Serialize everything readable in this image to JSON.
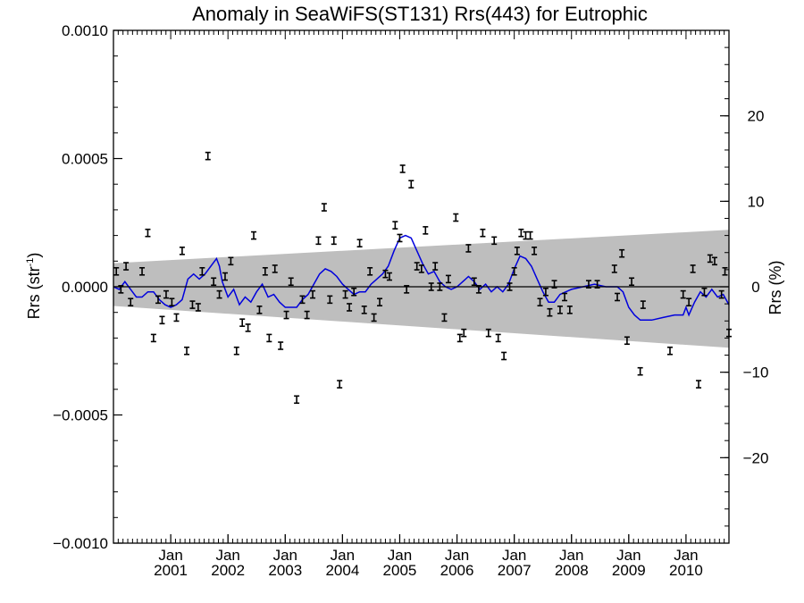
{
  "chart_data": {
    "type": "scatter",
    "title": "Anomaly in SeaWiFS(ST131) Rrs(443) for Eutrophic",
    "ylabel_left": "Rrs (str",
    "ylabel_left_sup": "-1",
    "ylabel_left_close": ")",
    "ylabel_right": "Rrs (%)",
    "ylim_left": [
      -0.001,
      0.001
    ],
    "ylim_right": [
      -30,
      30
    ],
    "xlim": [
      2000.0,
      2010.75
    ],
    "yticks_left": [
      {
        "v": 0.001,
        "label": "0.0010"
      },
      {
        "v": 0.0005,
        "label": "0.0005"
      },
      {
        "v": 0.0,
        "label": "0.0000"
      },
      {
        "v": -0.0005,
        "label": "−0.0005"
      },
      {
        "v": -0.001,
        "label": "−0.0010"
      }
    ],
    "yticks_right": [
      {
        "v": 20,
        "label": "20"
      },
      {
        "v": 10,
        "label": "10"
      },
      {
        "v": 0,
        "label": "0"
      },
      {
        "v": -10,
        "label": "−10"
      },
      {
        "v": -20,
        "label": "−20"
      }
    ],
    "xticks": [
      {
        "v": 2001.0,
        "month": "Jan",
        "year": "2001"
      },
      {
        "v": 2002.0,
        "month": "Jan",
        "year": "2002"
      },
      {
        "v": 2003.0,
        "month": "Jan",
        "year": "2003"
      },
      {
        "v": 2004.0,
        "month": "Jan",
        "year": "2004"
      },
      {
        "v": 2005.0,
        "month": "Jan",
        "year": "2005"
      },
      {
        "v": 2006.0,
        "month": "Jan",
        "year": "2006"
      },
      {
        "v": 2007.0,
        "month": "Jan",
        "year": "2007"
      },
      {
        "v": 2008.0,
        "month": "Jan",
        "year": "2008"
      },
      {
        "v": 2009.0,
        "month": "Jan",
        "year": "2009"
      },
      {
        "v": 2010.0,
        "month": "Jan",
        "year": "2010"
      }
    ],
    "band": {
      "color": "#bebebe",
      "x": [
        2000.0,
        2010.75
      ],
      "upper": [
        9.2e-05,
        0.000222
      ],
      "lower": [
        -7.5e-05,
        -0.000238
      ]
    },
    "zero_line": 0.0,
    "points_color": "#000000",
    "line_color": "#0000dd",
    "points": [
      [
        2000.05,
        6e-05
      ],
      [
        2000.13,
        -1e-05
      ],
      [
        2000.22,
        8e-05
      ],
      [
        2000.3,
        -6e-05
      ],
      [
        2000.5,
        6e-05
      ],
      [
        2000.6,
        0.00021
      ],
      [
        2000.7,
        -0.0002
      ],
      [
        2000.78,
        -5e-05
      ],
      [
        2000.85,
        -0.00013
      ],
      [
        2000.92,
        -3e-05
      ],
      [
        2001.02,
        -6e-05
      ],
      [
        2001.1,
        -0.00012
      ],
      [
        2001.2,
        0.00014
      ],
      [
        2001.28,
        -0.00025
      ],
      [
        2001.38,
        -7e-05
      ],
      [
        2001.48,
        -8e-05
      ],
      [
        2001.55,
        6e-05
      ],
      [
        2001.65,
        0.00051
      ],
      [
        2001.75,
        2e-05
      ],
      [
        2001.85,
        -3e-05
      ],
      [
        2001.95,
        4e-05
      ],
      [
        2002.05,
        0.0001
      ],
      [
        2002.15,
        -0.00025
      ],
      [
        2002.25,
        -0.00014
      ],
      [
        2002.35,
        -0.00016
      ],
      [
        2002.45,
        0.0002
      ],
      [
        2002.55,
        -9e-05
      ],
      [
        2002.65,
        6e-05
      ],
      [
        2002.72,
        -0.0002
      ],
      [
        2002.82,
        7e-05
      ],
      [
        2002.92,
        -0.00023
      ],
      [
        2003.02,
        -0.00011
      ],
      [
        2003.1,
        2e-05
      ],
      [
        2003.2,
        -0.00044
      ],
      [
        2003.3,
        -5e-05
      ],
      [
        2003.38,
        -0.00011
      ],
      [
        2003.48,
        -3e-05
      ],
      [
        2003.58,
        0.00018
      ],
      [
        2003.68,
        0.00031
      ],
      [
        2003.78,
        -5e-05
      ],
      [
        2003.85,
        0.00018
      ],
      [
        2003.95,
        -0.00038
      ],
      [
        2004.05,
        -3e-05
      ],
      [
        2004.12,
        -8e-05
      ],
      [
        2004.2,
        -2e-05
      ],
      [
        2004.3,
        0.00017
      ],
      [
        2004.38,
        -9e-05
      ],
      [
        2004.48,
        6e-05
      ],
      [
        2004.55,
        -0.00012
      ],
      [
        2004.65,
        -6e-05
      ],
      [
        2004.75,
        5e-05
      ],
      [
        2004.82,
        4e-05
      ],
      [
        2004.92,
        0.00024
      ],
      [
        2005.0,
        0.00019
      ],
      [
        2005.05,
        0.00046
      ],
      [
        2005.12,
        -1e-05
      ],
      [
        2005.2,
        0.0004
      ],
      [
        2005.3,
        8e-05
      ],
      [
        2005.38,
        7e-05
      ],
      [
        2005.45,
        0.00022
      ],
      [
        2005.55,
        0.0
      ],
      [
        2005.62,
        8e-05
      ],
      [
        2005.7,
        0.0
      ],
      [
        2005.78,
        -0.00012
      ],
      [
        2005.85,
        3e-05
      ],
      [
        2005.98,
        0.00027
      ],
      [
        2006.05,
        -0.0002
      ],
      [
        2006.12,
        -0.00018
      ],
      [
        2006.2,
        0.00015
      ],
      [
        2006.3,
        2e-05
      ],
      [
        2006.38,
        -1e-05
      ],
      [
        2006.45,
        0.00021
      ],
      [
        2006.55,
        -0.00018
      ],
      [
        2006.65,
        0.00018
      ],
      [
        2006.72,
        -0.0002
      ],
      [
        2006.82,
        -0.00027
      ],
      [
        2006.92,
        0.0
      ],
      [
        2007.0,
        6e-05
      ],
      [
        2007.05,
        0.00014
      ],
      [
        2007.12,
        0.00021
      ],
      [
        2007.2,
        0.0002
      ],
      [
        2007.28,
        0.0002
      ],
      [
        2007.35,
        0.00014
      ],
      [
        2007.45,
        -6e-05
      ],
      [
        2007.55,
        -2e-05
      ],
      [
        2007.62,
        -0.0001
      ],
      [
        2007.7,
        1e-05
      ],
      [
        2007.8,
        -9e-05
      ],
      [
        2007.88,
        -4e-05
      ],
      [
        2007.97,
        -9e-05
      ],
      [
        2008.3,
        1e-05
      ],
      [
        2008.45,
        1e-05
      ],
      [
        2008.75,
        7e-05
      ],
      [
        2008.8,
        -4e-05
      ],
      [
        2008.88,
        0.00013
      ],
      [
        2008.97,
        -0.00021
      ],
      [
        2009.05,
        2e-05
      ],
      [
        2009.2,
        -0.00033
      ],
      [
        2009.25,
        -7e-05
      ],
      [
        2009.72,
        -0.00025
      ],
      [
        2009.95,
        -3e-05
      ],
      [
        2010.05,
        -6e-05
      ],
      [
        2010.12,
        7e-05
      ],
      [
        2010.22,
        -0.00038
      ],
      [
        2010.32,
        -2e-05
      ],
      [
        2010.42,
        0.00011
      ],
      [
        2010.5,
        0.0001
      ],
      [
        2010.62,
        -3e-05
      ],
      [
        2010.68,
        6e-05
      ],
      [
        2010.75,
        -0.00018
      ]
    ],
    "smooth_line": [
      [
        2000.0,
        0.0
      ],
      [
        2000.1,
        -1e-05
      ],
      [
        2000.2,
        2e-05
      ],
      [
        2000.3,
        -1e-05
      ],
      [
        2000.4,
        -4e-05
      ],
      [
        2000.5,
        -4e-05
      ],
      [
        2000.6,
        -2e-05
      ],
      [
        2000.7,
        -2e-05
      ],
      [
        2000.8,
        -5e-05
      ],
      [
        2000.9,
        -7e-05
      ],
      [
        2001.0,
        -8e-05
      ],
      [
        2001.1,
        -7e-05
      ],
      [
        2001.2,
        -5e-05
      ],
      [
        2001.3,
        3e-05
      ],
      [
        2001.4,
        5e-05
      ],
      [
        2001.5,
        3e-05
      ],
      [
        2001.6,
        5e-05
      ],
      [
        2001.7,
        8e-05
      ],
      [
        2001.8,
        0.00011
      ],
      [
        2001.85,
        8e-05
      ],
      [
        2001.9,
        2e-05
      ],
      [
        2002.0,
        -4e-05
      ],
      [
        2002.1,
        -1e-05
      ],
      [
        2002.2,
        -7e-05
      ],
      [
        2002.3,
        -4e-05
      ],
      [
        2002.4,
        -6e-05
      ],
      [
        2002.5,
        -2e-05
      ],
      [
        2002.6,
        1e-05
      ],
      [
        2002.7,
        -4e-05
      ],
      [
        2002.8,
        -3e-05
      ],
      [
        2002.9,
        -6e-05
      ],
      [
        2003.0,
        -8e-05
      ],
      [
        2003.1,
        -8e-05
      ],
      [
        2003.2,
        -8e-05
      ],
      [
        2003.3,
        -5e-05
      ],
      [
        2003.4,
        -3e-05
      ],
      [
        2003.5,
        1e-05
      ],
      [
        2003.6,
        5e-05
      ],
      [
        2003.7,
        7e-05
      ],
      [
        2003.8,
        6e-05
      ],
      [
        2003.9,
        4e-05
      ],
      [
        2004.0,
        1e-05
      ],
      [
        2004.1,
        -1e-05
      ],
      [
        2004.2,
        -3e-05
      ],
      [
        2004.3,
        -2e-05
      ],
      [
        2004.4,
        -2e-05
      ],
      [
        2004.5,
        1e-05
      ],
      [
        2004.6,
        3e-05
      ],
      [
        2004.7,
        5e-05
      ],
      [
        2004.8,
        8e-05
      ],
      [
        2004.9,
        0.00014
      ],
      [
        2005.0,
        0.00019
      ],
      [
        2005.1,
        0.0002
      ],
      [
        2005.2,
        0.00019
      ],
      [
        2005.3,
        0.00014
      ],
      [
        2005.4,
        9e-05
      ],
      [
        2005.5,
        5e-05
      ],
      [
        2005.6,
        6e-05
      ],
      [
        2005.7,
        2e-05
      ],
      [
        2005.8,
        0.0
      ],
      [
        2005.9,
        -1e-05
      ],
      [
        2006.0,
        0.0
      ],
      [
        2006.1,
        2e-05
      ],
      [
        2006.2,
        4e-05
      ],
      [
        2006.3,
        2e-05
      ],
      [
        2006.4,
        -1e-05
      ],
      [
        2006.5,
        1e-05
      ],
      [
        2006.6,
        -2e-05
      ],
      [
        2006.7,
        0.0
      ],
      [
        2006.8,
        -2e-05
      ],
      [
        2006.9,
        1e-05
      ],
      [
        2007.0,
        7e-05
      ],
      [
        2007.1,
        0.00012
      ],
      [
        2007.2,
        0.00011
      ],
      [
        2007.3,
        8e-05
      ],
      [
        2007.4,
        3e-05
      ],
      [
        2007.5,
        -2e-05
      ],
      [
        2007.6,
        -6e-05
      ],
      [
        2007.7,
        -6e-05
      ],
      [
        2007.8,
        -3e-05
      ],
      [
        2007.9,
        -2e-05
      ],
      [
        2008.0,
        -1e-05
      ],
      [
        2008.2,
        0.0
      ],
      [
        2008.4,
        1e-05
      ],
      [
        2008.6,
        0.0
      ],
      [
        2008.8,
        0.0
      ],
      [
        2008.9,
        -2e-05
      ],
      [
        2009.0,
        -8e-05
      ],
      [
        2009.1,
        -0.00011
      ],
      [
        2009.2,
        -0.00013
      ],
      [
        2009.4,
        -0.00013
      ],
      [
        2009.6,
        -0.00012
      ],
      [
        2009.8,
        -0.00011
      ],
      [
        2009.95,
        -0.00011
      ],
      [
        2010.0,
        -8e-05
      ],
      [
        2010.05,
        -0.00011
      ],
      [
        2010.15,
        -6e-05
      ],
      [
        2010.25,
        -2e-05
      ],
      [
        2010.35,
        -4e-05
      ],
      [
        2010.45,
        -1e-05
      ],
      [
        2010.55,
        -4e-05
      ],
      [
        2010.65,
        -3e-05
      ],
      [
        2010.75,
        -7e-05
      ]
    ]
  }
}
